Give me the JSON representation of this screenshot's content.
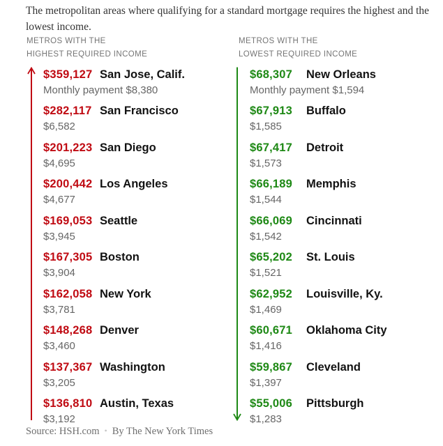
{
  "title": "The metropolitan areas where qualifying for a standard mortgage requires the highest and the lowest income.",
  "footer": {
    "source": "Source: HSH.com",
    "separator": "•",
    "byline": "By The New York Times"
  },
  "colors": {
    "red": "#c00b13",
    "green": "#1e8915",
    "metro_text": "#121212",
    "secondary_text": "#666666",
    "header_text": "#757575",
    "title_text": "#333333",
    "footer_text": "#6e6e6e"
  },
  "chart_data": [
    {
      "type": "table",
      "title_lines": [
        "METROS WITH THE",
        "HIGHEST REQUIRED INCOME"
      ],
      "direction": "up",
      "accent": "red",
      "rows": [
        {
          "income_label": "$359,127",
          "metro": "San Jose, Calif.",
          "payment_label": "Monthly payment $8,380",
          "required_income": 359127,
          "monthly_payment": 8380
        },
        {
          "income_label": "$282,117",
          "metro": "San Francisco",
          "payment_label": "$6,582",
          "required_income": 282117,
          "monthly_payment": 6582
        },
        {
          "income_label": "$201,223",
          "metro": "San Diego",
          "payment_label": "$4,695",
          "required_income": 201223,
          "monthly_payment": 4695
        },
        {
          "income_label": "$200,442",
          "metro": "Los Angeles",
          "payment_label": "$4,677",
          "required_income": 200442,
          "monthly_payment": 4677
        },
        {
          "income_label": "$169,053",
          "metro": "Seattle",
          "payment_label": "$3,945",
          "required_income": 169053,
          "monthly_payment": 3945
        },
        {
          "income_label": "$167,305",
          "metro": "Boston",
          "payment_label": "$3,904",
          "required_income": 167305,
          "monthly_payment": 3904
        },
        {
          "income_label": "$162,058",
          "metro": "New York",
          "payment_label": "$3,781",
          "required_income": 162058,
          "monthly_payment": 3781
        },
        {
          "income_label": "$148,268",
          "metro": "Denver",
          "payment_label": "$3,460",
          "required_income": 148268,
          "monthly_payment": 3460
        },
        {
          "income_label": "$137,367",
          "metro": "Washington",
          "payment_label": "$3,205",
          "required_income": 137367,
          "monthly_payment": 3205
        },
        {
          "income_label": "$136,810",
          "metro": "Austin, Texas",
          "payment_label": "$3,192",
          "required_income": 136810,
          "monthly_payment": 3192
        }
      ]
    },
    {
      "type": "table",
      "title_lines": [
        "METROS WITH THE",
        "LOWEST REQUIRED INCOME"
      ],
      "direction": "down",
      "accent": "green",
      "rows": [
        {
          "income_label": "$68,307",
          "metro": "New Orleans",
          "payment_label": "Monthly payment $1,594",
          "required_income": 68307,
          "monthly_payment": 1594
        },
        {
          "income_label": "$67,913",
          "metro": "Buffalo",
          "payment_label": "$1,585",
          "required_income": 67913,
          "monthly_payment": 1585
        },
        {
          "income_label": "$67,417",
          "metro": "Detroit",
          "payment_label": "$1,573",
          "required_income": 67417,
          "monthly_payment": 1573
        },
        {
          "income_label": "$66,189",
          "metro": "Memphis",
          "payment_label": "$1,544",
          "required_income": 66189,
          "monthly_payment": 1544
        },
        {
          "income_label": "$66,069",
          "metro": "Cincinnati",
          "payment_label": "$1,542",
          "required_income": 66069,
          "monthly_payment": 1542
        },
        {
          "income_label": "$65,202",
          "metro": "St. Louis",
          "payment_label": "$1,521",
          "required_income": 65202,
          "monthly_payment": 1521
        },
        {
          "income_label": "$62,952",
          "metro": "Louisville, Ky.",
          "payment_label": "$1,469",
          "required_income": 62952,
          "monthly_payment": 1469
        },
        {
          "income_label": "$60,671",
          "metro": "Oklahoma City",
          "payment_label": "$1,416",
          "required_income": 60671,
          "monthly_payment": 1416
        },
        {
          "income_label": "$59,867",
          "metro": "Cleveland",
          "payment_label": "$1,397",
          "required_income": 59867,
          "monthly_payment": 1397
        },
        {
          "income_label": "$55,006",
          "metro": "Pittsburgh",
          "payment_label": "$1,283",
          "required_income": 55006,
          "monthly_payment": 1283
        }
      ]
    }
  ]
}
